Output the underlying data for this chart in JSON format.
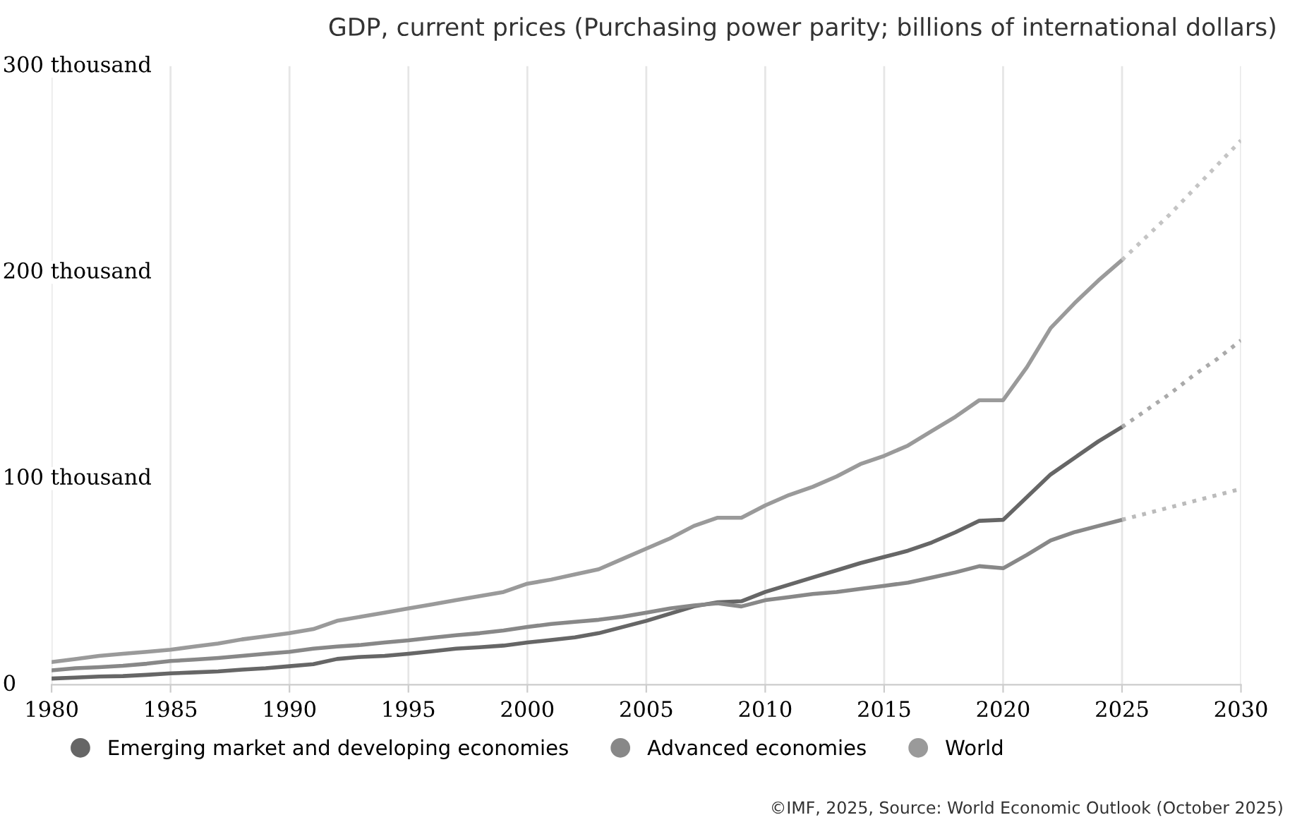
{
  "chart_data": {
    "type": "line",
    "title": "GDP, current prices (Purchasing power parity; billions of international dollars)",
    "annotations": [
      "©IMF, 2025, Source: World Economic Outlook (October 2025)"
    ],
    "xlim": [
      1980,
      2030
    ],
    "xticks": [
      1980,
      1985,
      1990,
      1995,
      2000,
      2005,
      2010,
      2015,
      2020,
      2025,
      2030
    ],
    "ylim": [
      0,
      300000
    ],
    "yticks": [
      0,
      {
        "value": 100000,
        "label": "100 thousand"
      },
      {
        "value": 200000,
        "label": "200 thousand"
      },
      {
        "value": 300000,
        "label": "300 thousand"
      }
    ],
    "grid": "x",
    "legend": "bottom",
    "marker": "none",
    "series": [
      {
        "name": "Emerging market and developing economies",
        "color": "#666666",
        "line_style": "solid",
        "x": [
          1980,
          1981,
          1982,
          1983,
          1984,
          1985,
          1986,
          1987,
          1988,
          1989,
          1990,
          1991,
          1992,
          1993,
          1994,
          1995,
          1996,
          1997,
          1998,
          1999,
          2000,
          2001,
          2002,
          2003,
          2004,
          2005,
          2006,
          2007,
          2008,
          2009,
          2010,
          2011,
          2012,
          2013,
          2014,
          2015,
          2016,
          2017,
          2018,
          2019,
          2020,
          2021,
          2022,
          2023,
          2024,
          2025
        ],
        "values": [
          3000,
          3500,
          4000,
          4200,
          4800,
          5500,
          6000,
          6500,
          7300,
          8000,
          9000,
          10000,
          12500,
          13500,
          14000,
          15000,
          16200,
          17500,
          18200,
          19000,
          20500,
          21700,
          23000,
          25000,
          28000,
          31000,
          34500,
          38000,
          40000,
          40500,
          45000,
          48500,
          52000,
          55500,
          59000,
          62000,
          65000,
          69000,
          74000,
          79500,
          80000,
          91000,
          102000,
          110000,
          118000,
          125000
        ]
      },
      {
        "name": "Advanced economies",
        "color": "#888888",
        "line_style": "solid",
        "x": [
          1980,
          1981,
          1982,
          1983,
          1984,
          1985,
          1986,
          1987,
          1988,
          1989,
          1990,
          1991,
          1992,
          1993,
          1994,
          1995,
          1996,
          1997,
          1998,
          1999,
          2000,
          2001,
          2002,
          2003,
          2004,
          2005,
          2006,
          2007,
          2008,
          2009,
          2010,
          2011,
          2012,
          2013,
          2014,
          2015,
          2016,
          2017,
          2018,
          2019,
          2020,
          2021,
          2022,
          2023,
          2024,
          2025
        ],
        "values": [
          7000,
          8000,
          8500,
          9200,
          10200,
          11500,
          12200,
          13000,
          14000,
          15000,
          16000,
          17500,
          18500,
          19300,
          20500,
          21500,
          22800,
          24000,
          25000,
          26300,
          28000,
          29500,
          30500,
          31500,
          33000,
          35000,
          37000,
          38500,
          39500,
          38000,
          41000,
          42500,
          44000,
          45000,
          46500,
          48000,
          49500,
          52000,
          54500,
          57500,
          56500,
          63000,
          70000,
          74000,
          77000,
          80000
        ]
      },
      {
        "name": "World",
        "color": "#9a9a9a",
        "line_style": "solid",
        "x": [
          1980,
          1981,
          1982,
          1983,
          1984,
          1985,
          1986,
          1987,
          1988,
          1989,
          1990,
          1991,
          1992,
          1993,
          1994,
          1995,
          1996,
          1997,
          1998,
          1999,
          2000,
          2001,
          2002,
          2003,
          2004,
          2005,
          2006,
          2007,
          2008,
          2009,
          2010,
          2011,
          2012,
          2013,
          2014,
          2015,
          2016,
          2017,
          2018,
          2019,
          2020,
          2021,
          2022,
          2023,
          2024,
          2025
        ],
        "values": [
          11000,
          12500,
          14000,
          15000,
          16000,
          17000,
          18500,
          20000,
          22000,
          23500,
          25000,
          27000,
          31000,
          33000,
          35000,
          37000,
          39000,
          41000,
          43000,
          45000,
          49000,
          51000,
          53500,
          56000,
          61000,
          66000,
          71000,
          77000,
          81000,
          81000,
          87000,
          92000,
          96000,
          101000,
          107000,
          111000,
          116000,
          123000,
          130000,
          138000,
          138000,
          154000,
          173000,
          185000,
          196000,
          206000
        ]
      },
      {
        "color": "#aaaaaa",
        "line_style": "dotted",
        "x": [
          2025,
          2026,
          2027,
          2028,
          2029,
          2030
        ],
        "values": [
          125000,
          133000,
          141000,
          150000,
          158000,
          167000
        ]
      },
      {
        "color": "#bbbbbb",
        "line_style": "dotted",
        "x": [
          2025,
          2026,
          2027,
          2028,
          2029,
          2030
        ],
        "values": [
          80000,
          83000,
          86000,
          89000,
          92000,
          95000
        ]
      },
      {
        "color": "#c4c4c4",
        "line_style": "dotted",
        "x": [
          2025,
          2026,
          2027,
          2028,
          2029,
          2030
        ],
        "values": [
          206000,
          217000,
          228000,
          240000,
          252000,
          264000
        ]
      }
    ]
  }
}
